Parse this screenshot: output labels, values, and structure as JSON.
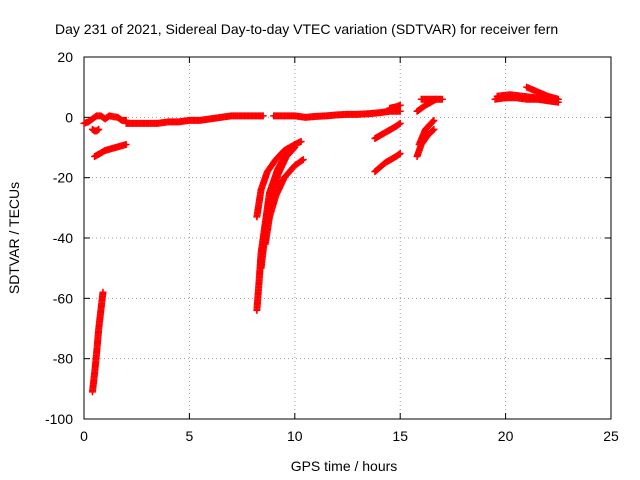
{
  "chart_data": {
    "type": "scatter",
    "title": "Day 231 of 2021, Sidereal Day-to-day VTEC variation (SDTVAR) for receiver fern",
    "xlabel": "GPS time / hours",
    "ylabel": "SDTVAR / TECUs",
    "xlim": [
      0,
      25
    ],
    "ylim": [
      -100,
      20
    ],
    "xticks": [
      "0",
      "5",
      "10",
      "15",
      "20",
      "25"
    ],
    "yticks": [
      "20",
      "0",
      "-20",
      "-40",
      "-60",
      "-80",
      "-100"
    ],
    "grid": true,
    "marker": "plus",
    "color": "#ff0000",
    "series": [
      {
        "x": [
          0.0,
          0.2,
          0.4,
          0.6,
          0.8,
          1.0,
          1.2,
          1.4,
          1.6,
          1.8,
          2.0
        ],
        "y": [
          -2,
          -1.5,
          -0.5,
          0.5,
          0.5,
          -0.5,
          0.5,
          0.2,
          0,
          -1,
          -1
        ]
      },
      {
        "x": [
          0.4,
          0.5,
          0.6,
          0.7
        ],
        "y": [
          -4,
          -4.5,
          -4.5,
          -4
        ]
      },
      {
        "x": [
          0.5,
          1.0,
          1.5,
          2.0
        ],
        "y": [
          -13,
          -11,
          -10,
          -9
        ]
      },
      {
        "x": [
          0.4,
          0.5,
          0.6,
          0.7,
          0.8,
          0.9
        ],
        "y": [
          -91,
          -85,
          -78,
          -70,
          -64,
          -58
        ]
      },
      {
        "x": [
          2.0,
          2.5,
          3.0,
          3.5,
          4.0,
          4.5,
          5.0,
          5.5,
          6.0,
          6.5,
          7.0,
          7.5,
          8.0,
          8.5
        ],
        "y": [
          -2,
          -2,
          -2,
          -2,
          -1.5,
          -1.5,
          -1,
          -1,
          -0.5,
          0,
          0.5,
          0.5,
          0.5,
          0.5
        ]
      },
      {
        "x": [
          9.0,
          9.5,
          10.0,
          10.5,
          11.0,
          11.5,
          12.0,
          12.5,
          13.0,
          13.5,
          14.0,
          14.5,
          15.0
        ],
        "y": [
          0.5,
          0.5,
          0.5,
          0,
          0.3,
          0.5,
          0.8,
          1,
          1,
          1.2,
          1.5,
          2,
          2
        ]
      },
      {
        "x": [
          8.2,
          8.3,
          8.4,
          8.6,
          8.8,
          9.2,
          9.6,
          10.0,
          10.3
        ],
        "y": [
          -64,
          -55,
          -45,
          -35,
          -25,
          -17,
          -12,
          -9,
          -8
        ]
      },
      {
        "x": [
          8.4,
          8.6,
          8.8,
          9.2,
          9.6,
          10.0
        ],
        "y": [
          -50,
          -38,
          -28,
          -19,
          -13,
          -10
        ]
      },
      {
        "x": [
          8.6,
          8.8,
          9.1,
          9.5,
          10.0,
          10.4
        ],
        "y": [
          -42,
          -33,
          -26,
          -20,
          -16,
          -14
        ]
      },
      {
        "x": [
          8.2,
          8.4,
          8.7,
          9.1,
          9.5,
          10.0
        ],
        "y": [
          -33,
          -24,
          -18,
          -14,
          -11,
          -9
        ]
      },
      {
        "x": [
          13.8,
          14.3,
          14.8,
          15.0
        ],
        "y": [
          -7,
          -5,
          -3,
          -2
        ]
      },
      {
        "x": [
          13.8,
          14.3,
          14.8,
          15.0
        ],
        "y": [
          -18,
          -15,
          -13,
          -12
        ]
      },
      {
        "x": [
          14.5,
          14.8,
          15.0
        ],
        "y": [
          3,
          3.5,
          4
        ]
      },
      {
        "x": [
          15.8,
          16.0,
          16.3,
          16.6
        ],
        "y": [
          -13,
          -9,
          -6,
          -4
        ]
      },
      {
        "x": [
          15.9,
          16.2,
          16.6
        ],
        "y": [
          -9,
          -4,
          -1
        ]
      },
      {
        "x": [
          15.8,
          16.2,
          16.7
        ],
        "y": [
          2,
          4,
          6
        ]
      },
      {
        "x": [
          16.0,
          16.5,
          17.0
        ],
        "y": [
          6,
          6,
          6
        ]
      },
      {
        "x": [
          19.5,
          20.0,
          20.5,
          21.0,
          21.5,
          22.0,
          22.5
        ],
        "y": [
          6,
          6.5,
          6.5,
          6,
          6,
          5.5,
          5
        ]
      },
      {
        "x": [
          19.6,
          20.2,
          20.8,
          21.4,
          22.0
        ],
        "y": [
          7,
          7.5,
          7,
          6.5,
          6
        ]
      },
      {
        "x": [
          21.0,
          21.5,
          22.0,
          22.5
        ],
        "y": [
          10,
          8.5,
          7,
          6
        ]
      }
    ]
  }
}
